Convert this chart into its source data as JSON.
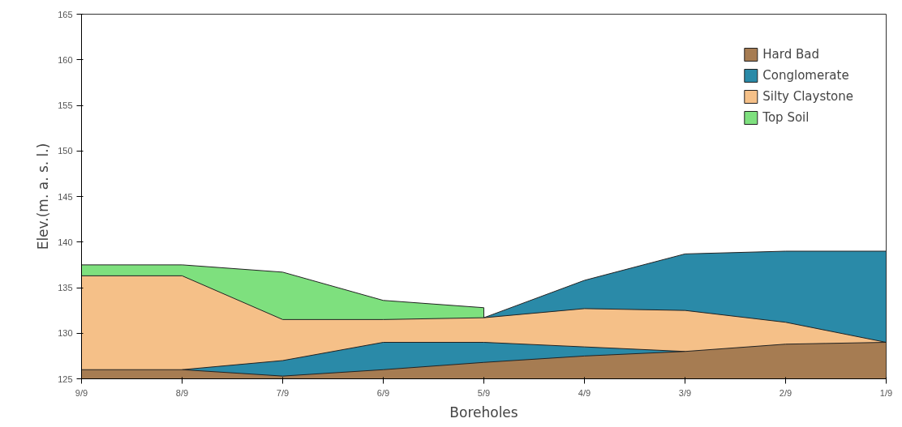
{
  "chart_data": {
    "type": "area",
    "xlabel": "Boreholes",
    "ylabel": "Elev.(m. a. s. l.)",
    "categories": [
      "9/9",
      "8/9",
      "7/9",
      "6/9",
      "5/9",
      "4/9",
      "3/9",
      "2/9",
      "1/9"
    ],
    "ylim": [
      125,
      165
    ],
    "yticks": [
      125,
      130,
      135,
      140,
      145,
      150,
      155,
      160,
      165
    ],
    "series": [
      {
        "name": "Hard Bad",
        "color": "#a67c52",
        "values": [
          126,
          126,
          125.3,
          126,
          126.8,
          127.5,
          128,
          128.8,
          129
        ]
      },
      {
        "name": "Conglomerate",
        "color": "#2a8aa8",
        "values": [
          null,
          126,
          127,
          129,
          129,
          128.5,
          128,
          null,
          null
        ]
      },
      {
        "name": "Silty Claystone",
        "color": "#f5c088",
        "values": [
          136.3,
          136.3,
          131.5,
          131.5,
          131.7,
          132.7,
          132.5,
          131.2,
          129
        ]
      },
      {
        "color": "#2a8aa8",
        "values": [
          null,
          null,
          null,
          null,
          131.7,
          135.8,
          138.7,
          139,
          139
        ]
      },
      {
        "name": "Top Soil",
        "color": "#7ee07e",
        "values": [
          137.5,
          137.5,
          136.7,
          133.6,
          132.8,
          null,
          null,
          null,
          null
        ]
      }
    ],
    "legend": "top right",
    "grid": false
  }
}
